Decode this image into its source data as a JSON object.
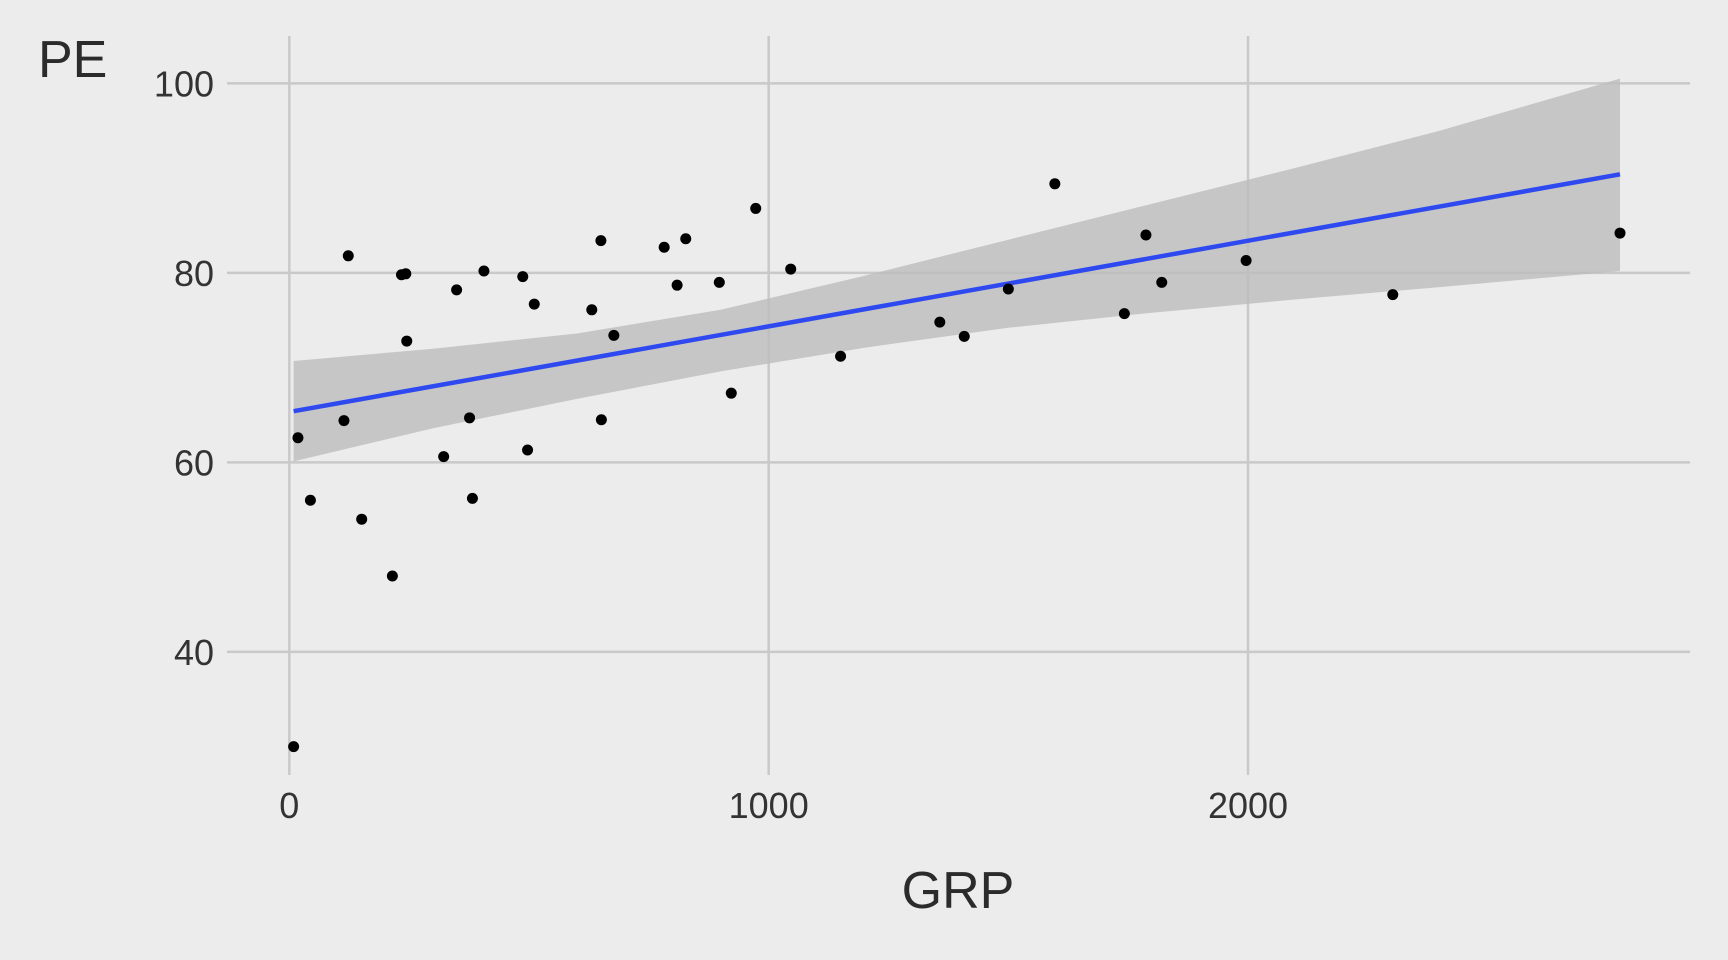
{
  "chart_data": {
    "type": "scatter",
    "title": "",
    "xlabel": "GRP",
    "ylabel": "PE",
    "xlim": [
      -130,
      2922
    ],
    "ylim": [
      27,
      105
    ],
    "x_ticks": [
      0,
      1000,
      2000
    ],
    "y_ticks": [
      40,
      60,
      80,
      100
    ],
    "x_tick_labels": [
      "0",
      "1000",
      "2000"
    ],
    "y_tick_labels": [
      "40",
      "60",
      "80",
      "100"
    ],
    "grid": true,
    "legend": "none",
    "colors": {
      "background": "#ececec",
      "grid": "#c9c9c9",
      "points": "#000000",
      "fit_line": "#2f49f0",
      "confidence_band": "#bdbdbd"
    },
    "series": [
      {
        "type": "scatter",
        "points": [
          {
            "x": 9,
            "y": 30.0
          },
          {
            "x": 18,
            "y": 62.6
          },
          {
            "x": 44,
            "y": 56.0
          },
          {
            "x": 114,
            "y": 64.4
          },
          {
            "x": 123,
            "y": 81.8
          },
          {
            "x": 151,
            "y": 54.0
          },
          {
            "x": 215,
            "y": 48.0
          },
          {
            "x": 234,
            "y": 79.8
          },
          {
            "x": 243,
            "y": 79.9
          },
          {
            "x": 245,
            "y": 72.8
          },
          {
            "x": 322,
            "y": 60.6
          },
          {
            "x": 349,
            "y": 78.2
          },
          {
            "x": 376,
            "y": 64.7
          },
          {
            "x": 382,
            "y": 56.2
          },
          {
            "x": 406,
            "y": 80.2
          },
          {
            "x": 487,
            "y": 79.6
          },
          {
            "x": 497,
            "y": 61.3
          },
          {
            "x": 511,
            "y": 76.7
          },
          {
            "x": 631,
            "y": 76.1
          },
          {
            "x": 650,
            "y": 83.4
          },
          {
            "x": 651,
            "y": 64.5
          },
          {
            "x": 677,
            "y": 73.4
          },
          {
            "x": 782,
            "y": 82.7
          },
          {
            "x": 809,
            "y": 78.7
          },
          {
            "x": 827,
            "y": 83.6
          },
          {
            "x": 897,
            "y": 79.0
          },
          {
            "x": 922,
            "y": 67.3
          },
          {
            "x": 973,
            "y": 86.8
          },
          {
            "x": 1046,
            "y": 80.4
          },
          {
            "x": 1150,
            "y": 71.2
          },
          {
            "x": 1357,
            "y": 74.8
          },
          {
            "x": 1408,
            "y": 73.3
          },
          {
            "x": 1500,
            "y": 78.3
          },
          {
            "x": 1597,
            "y": 89.4
          },
          {
            "x": 1742,
            "y": 75.7
          },
          {
            "x": 1787,
            "y": 84.0
          },
          {
            "x": 1820,
            "y": 79.0
          },
          {
            "x": 1996,
            "y": 81.3
          },
          {
            "x": 2302,
            "y": 77.7
          },
          {
            "x": 2776,
            "y": 84.2
          }
        ]
      },
      {
        "type": "line",
        "x": [
          9,
          2776
        ],
        "y": [
          65.4,
          90.4
        ]
      },
      {
        "type": "area",
        "x": [
          9,
          300,
          600,
          900,
          1200,
          1500,
          1800,
          2100,
          2400,
          2776
        ],
        "upper": [
          70.7,
          72.0,
          73.6,
          76.1,
          79.7,
          83.5,
          87.3,
          91.1,
          95.0,
          100.5
        ],
        "lower": [
          60.1,
          63.6,
          66.7,
          69.6,
          72.1,
          74.2,
          75.8,
          77.2,
          78.5,
          80.2
        ]
      }
    ]
  }
}
